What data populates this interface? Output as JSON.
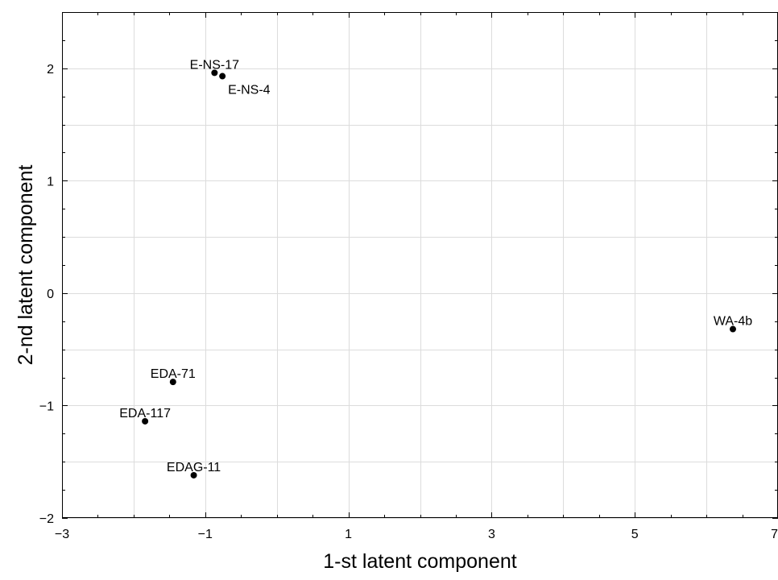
{
  "chart_data": {
    "type": "scatter",
    "xlabel": "1-st latent component",
    "ylabel": "2-nd latent component",
    "xlim": [
      -3,
      7
    ],
    "ylim": [
      -2,
      2.5
    ],
    "xticks": [
      {
        "value": -3,
        "label": "−3"
      },
      {
        "value": -1,
        "label": "−1"
      },
      {
        "value": 1,
        "label": "1"
      },
      {
        "value": 3,
        "label": "3"
      },
      {
        "value": 5,
        "label": "5"
      },
      {
        "value": 7,
        "label": "7"
      }
    ],
    "yticks": [
      {
        "value": -2,
        "label": "−2"
      },
      {
        "value": -1,
        "label": "−1"
      },
      {
        "value": 0,
        "label": "0"
      },
      {
        "value": 1,
        "label": "1"
      },
      {
        "value": 2,
        "label": "2"
      }
    ],
    "grid": true,
    "points": [
      {
        "label": "E-NS-17",
        "x": -0.87,
        "y": 1.96
      },
      {
        "label": "E-NS-4",
        "x": -0.76,
        "y": 1.93
      },
      {
        "label": "WA-4b",
        "x": 6.37,
        "y": -0.32
      },
      {
        "label": "EDA-71",
        "x": -1.45,
        "y": -0.79
      },
      {
        "label": "EDA-117",
        "x": -1.84,
        "y": -1.14
      },
      {
        "label": "EDAG-11",
        "x": -1.16,
        "y": -1.62
      }
    ]
  }
}
